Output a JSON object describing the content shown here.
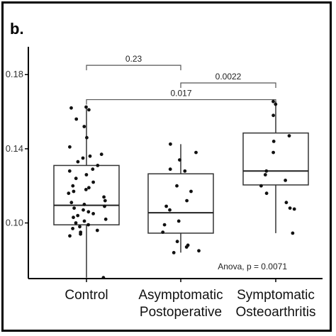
{
  "panel_label": "b.",
  "chart_data": {
    "type": "box",
    "ylim": [
      0.07,
      0.195
    ],
    "yticks": [
      0.1,
      0.14,
      0.18
    ],
    "ytick_labels": [
      "0.10",
      "0.14",
      "0.18"
    ],
    "categories": [
      {
        "line1": "Control",
        "line2": ""
      },
      {
        "line1": "Asymptomatic",
        "line2": "Postoperative"
      },
      {
        "line1": "Symptomatic",
        "line2": "Osteoarthritis"
      }
    ],
    "boxes": [
      {
        "min": 0.0705,
        "q1": 0.099,
        "median": 0.1095,
        "q3": 0.131,
        "max": 0.1625
      },
      {
        "min": 0.084,
        "q1": 0.0945,
        "median": 0.1055,
        "q3": 0.1265,
        "max": 0.1425
      },
      {
        "min": 0.0945,
        "q1": 0.1205,
        "median": 0.128,
        "q3": 0.1485,
        "max": 0.1655
      }
    ],
    "points": [
      [
        0.1625,
        0.161,
        0.162,
        0.156,
        0.152,
        0.146,
        0.141,
        0.137,
        0.136,
        0.135,
        0.133,
        0.131,
        0.129,
        0.128,
        0.126,
        0.124,
        0.122,
        0.12,
        0.119,
        0.118,
        0.117,
        0.116,
        0.114,
        0.112,
        0.111,
        0.11,
        0.109,
        0.108,
        0.107,
        0.106,
        0.105,
        0.104,
        0.103,
        0.102,
        0.101,
        0.1,
        0.099,
        0.098,
        0.097,
        0.096,
        0.095,
        0.094,
        0.093,
        0.0705
      ],
      [
        0.1425,
        0.138,
        0.134,
        0.129,
        0.128,
        0.12,
        0.117,
        0.112,
        0.109,
        0.107,
        0.101,
        0.099,
        0.095,
        0.09,
        0.088,
        0.087,
        0.085,
        0.084
      ],
      [
        0.1655,
        0.164,
        0.158,
        0.147,
        0.144,
        0.138,
        0.128,
        0.126,
        0.123,
        0.12,
        0.116,
        0.111,
        0.108,
        0.1075,
        0.0945
      ]
    ],
    "comparisons": [
      {
        "from": 0,
        "to": 1,
        "label": "0.23",
        "y": 0.185
      },
      {
        "from": 1,
        "to": 2,
        "label": "0.0022",
        "y": 0.1755
      },
      {
        "from": 0,
        "to": 2,
        "label": "0.017",
        "y": 0.1665
      }
    ],
    "annotation": "Anova, p = 0.0071"
  }
}
